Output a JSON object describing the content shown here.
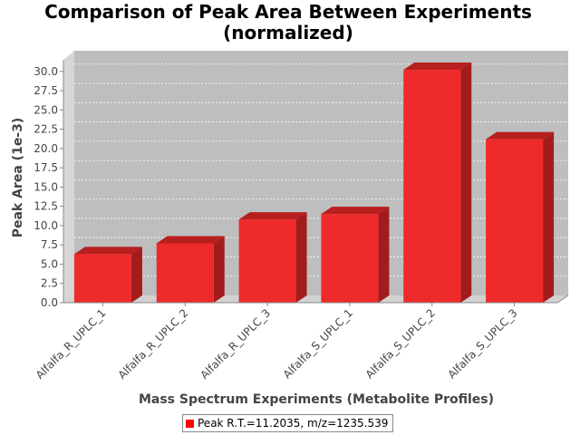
{
  "chart_data": {
    "type": "bar",
    "title_line1": "Comparison of Peak Area Between Experiments",
    "title_line2": "(normalized)",
    "xlabel": "Mass Spectrum Experiments (Metabolite Profiles)",
    "ylabel": "Peak Area (1e-3)",
    "categories": [
      "Alfalfa_R_UPLC_1",
      "Alfalfa_R_UPLC_2",
      "Alfalfa_R_UPLC_3",
      "Alfalfa_S_UPLC_1",
      "Alfalfa_S_UPLC_2",
      "Alfalfa_S_UPLC_3"
    ],
    "series": [
      {
        "name": "Peak R.T.=11.2035, m/z=1235.539",
        "values": [
          6.3,
          7.7,
          10.8,
          11.5,
          30.2,
          21.2
        ]
      }
    ],
    "ylim": [
      0,
      31.5
    ],
    "yticks": [
      "0.0",
      "2.5",
      "5.0",
      "7.5",
      "10.0",
      "12.5",
      "15.0",
      "17.5",
      "20.0",
      "22.5",
      "25.0",
      "27.5",
      "30.0"
    ],
    "grid": true,
    "legend_position": "bottom-center",
    "colors": {
      "bar_front": "#ee2a2a",
      "bar_top": "#b81f1f",
      "bar_side": "#a31c1c",
      "plot_bg": "#bebebe",
      "wall": "#d6d6d6",
      "floor": "#cfcfcf",
      "legend_swatch": "#ff0000"
    }
  }
}
